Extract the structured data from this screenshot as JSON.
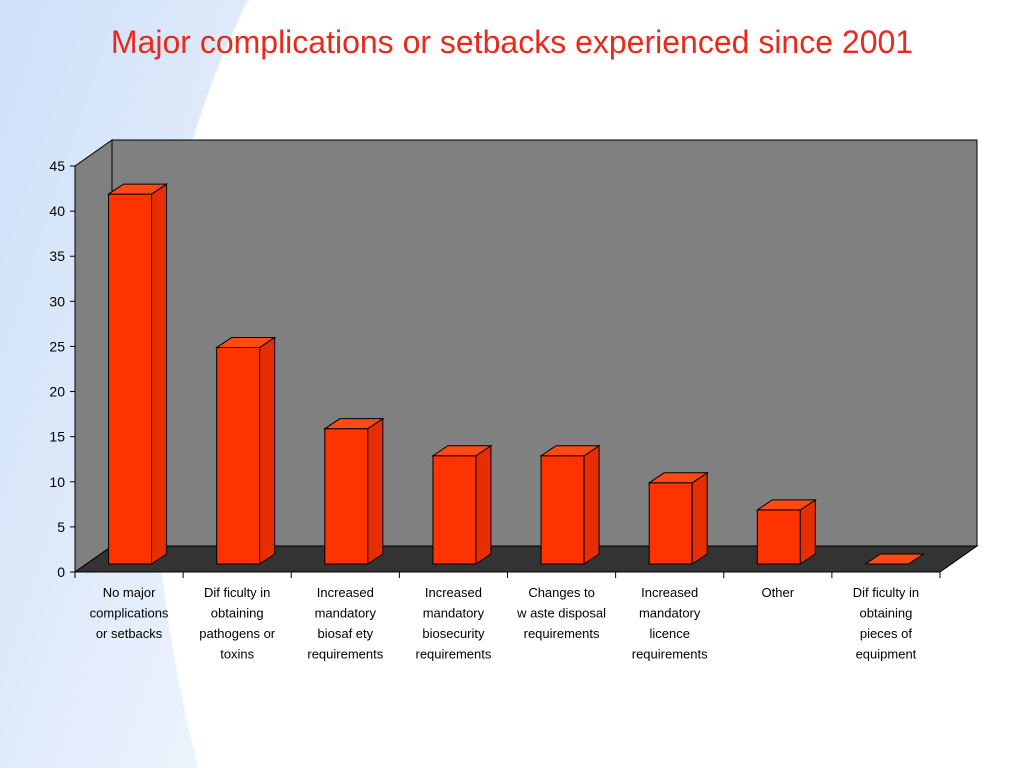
{
  "slide": {
    "title": "Major complications or setbacks experienced since 2001"
  },
  "colors": {
    "title": "#e8291b",
    "bar_front": "#ff3300",
    "bar_side": "#e62e00",
    "bar_top": "#ff4a14",
    "back_wall": "#808080",
    "side_wall": "#808080",
    "floor": "#333333",
    "background_accent": "#d6e6fb"
  },
  "chart_data": {
    "type": "bar",
    "style": "3d-column",
    "title": "",
    "xlabel": "",
    "ylabel": "",
    "ylim": [
      0,
      45
    ],
    "yticks": [
      0,
      5,
      10,
      15,
      20,
      25,
      30,
      35,
      40,
      45
    ],
    "grid": false,
    "legend": "none",
    "categories": [
      [
        "No major",
        "complications",
        "or setbacks"
      ],
      [
        "Dif ficulty in",
        "obtaining",
        "pathogens or",
        "toxins"
      ],
      [
        "Increased",
        "mandatory",
        "biosaf ety",
        "requirements"
      ],
      [
        "Increased",
        "mandatory",
        "biosecurity",
        "requirements"
      ],
      [
        "Changes to",
        "w aste disposal",
        "requirements"
      ],
      [
        "Increased",
        "mandatory",
        "licence",
        "requirements"
      ],
      [
        "Other"
      ],
      [
        "Dif ficulty in",
        "obtaining",
        "pieces of",
        "equipment"
      ]
    ],
    "values": [
      41,
      24,
      15,
      12,
      12,
      9,
      6,
      0
    ]
  }
}
